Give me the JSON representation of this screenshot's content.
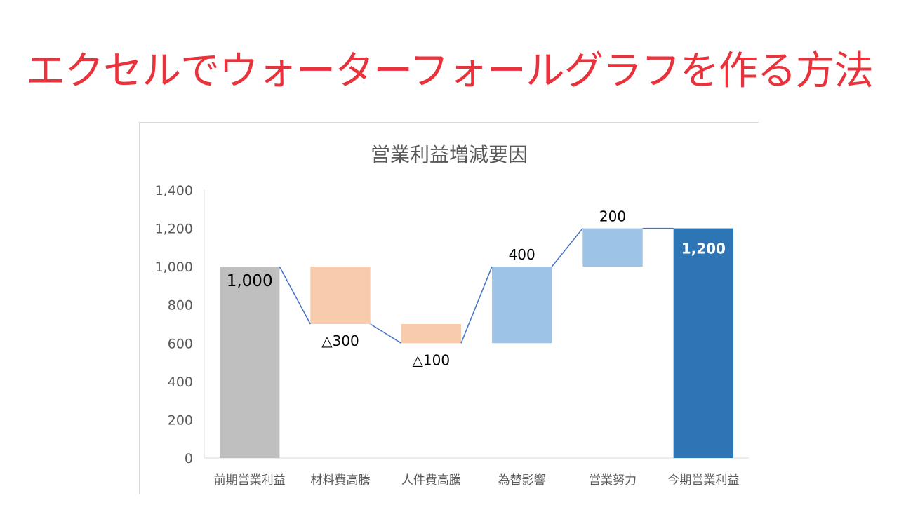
{
  "headline": "エクセルでウォーターフォールグラフを作る方法",
  "chart_data": {
    "type": "waterfall",
    "title": "営業利益増減要因",
    "categories": [
      "前期営業利益",
      "材料費高騰",
      "人件費高騰",
      "為替影響",
      "営業努力",
      "今期営業利益"
    ],
    "bars": [
      {
        "label": "前期営業利益",
        "base": 0,
        "top": 1000,
        "value_label": "1,000",
        "kind": "total-start",
        "color": "#bfbfbf",
        "label_color": "#000000"
      },
      {
        "label": "材料費高騰",
        "base": 700,
        "top": 1000,
        "value_label": "△300",
        "kind": "decrease",
        "color": "#f8cbad",
        "label_color": "#000000"
      },
      {
        "label": "人件費高騰",
        "base": 600,
        "top": 700,
        "value_label": "△100",
        "kind": "decrease",
        "color": "#f8cbad",
        "label_color": "#000000"
      },
      {
        "label": "為替影響",
        "base": 600,
        "top": 1000,
        "value_label": "400",
        "kind": "increase",
        "color": "#9dc3e6",
        "label_color": "#000000"
      },
      {
        "label": "営業努力",
        "base": 1000,
        "top": 1200,
        "value_label": "200",
        "kind": "increase",
        "color": "#9dc3e6",
        "label_color": "#000000"
      },
      {
        "label": "今期営業利益",
        "base": 0,
        "top": 1200,
        "value_label": "1,200",
        "kind": "total-end",
        "color": "#2e75b6",
        "label_color": "#ffffff"
      }
    ],
    "connector_values": [
      1000,
      700,
      600,
      1000,
      1200,
      1200
    ],
    "connector_color": "#4472c4",
    "ylim": [
      0,
      1400
    ],
    "yticks": [
      0,
      200,
      400,
      600,
      800,
      1000,
      1200,
      1400
    ],
    "ytick_labels": [
      "0",
      "200",
      "400",
      "600",
      "800",
      "1,000",
      "1,200",
      "1,400"
    ],
    "xlabel": "",
    "ylabel": "",
    "grid": false,
    "legend": "none"
  }
}
